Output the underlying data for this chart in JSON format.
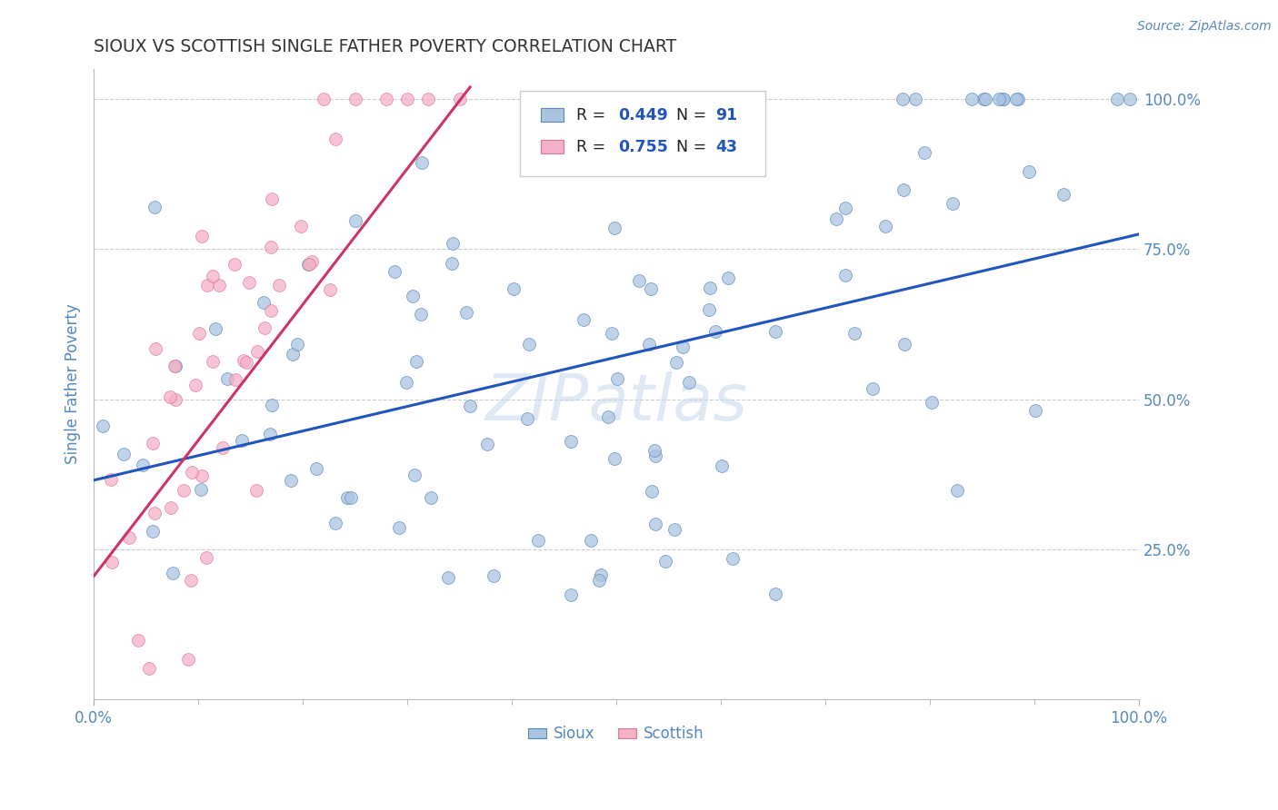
{
  "title": "SIOUX VS SCOTTISH SINGLE FATHER POVERTY CORRELATION CHART",
  "source_text": "Source: ZipAtlas.com",
  "ylabel": "Single Father Poverty",
  "xlim": [
    0.0,
    1.0
  ],
  "ylim": [
    0.0,
    1.05
  ],
  "x_tick_labels": [
    "0.0%",
    "100.0%"
  ],
  "y_tick_labels": [
    "25.0%",
    "50.0%",
    "75.0%",
    "100.0%"
  ],
  "y_tick_positions": [
    0.25,
    0.5,
    0.75,
    1.0
  ],
  "watermark_text": "ZIPatlas",
  "sioux_color": "#aac4e0",
  "scottish_color": "#f4b0c4",
  "sioux_edge_color": "#5588bb",
  "scottish_edge_color": "#dd7799",
  "trend_sioux_color": "#2255bb",
  "trend_scottish_color": "#cc3366",
  "R_sioux": 0.449,
  "N_sioux": 91,
  "R_scottish": 0.755,
  "N_scottish": 43,
  "legend_text_color": "#222222",
  "legend_value_color": "#2255bb",
  "axis_color": "#5588bb",
  "background_color": "#ffffff",
  "grid_color": "#cccccc",
  "marker_size": 100,
  "trend_sioux_x0": 0.0,
  "trend_sioux_y0": 0.365,
  "trend_sioux_x1": 1.0,
  "trend_sioux_y1": 0.775,
  "trend_scottish_x0": 0.0,
  "trend_scottish_y0": 0.205,
  "trend_scottish_x1": 0.36,
  "trend_scottish_y1": 1.02
}
